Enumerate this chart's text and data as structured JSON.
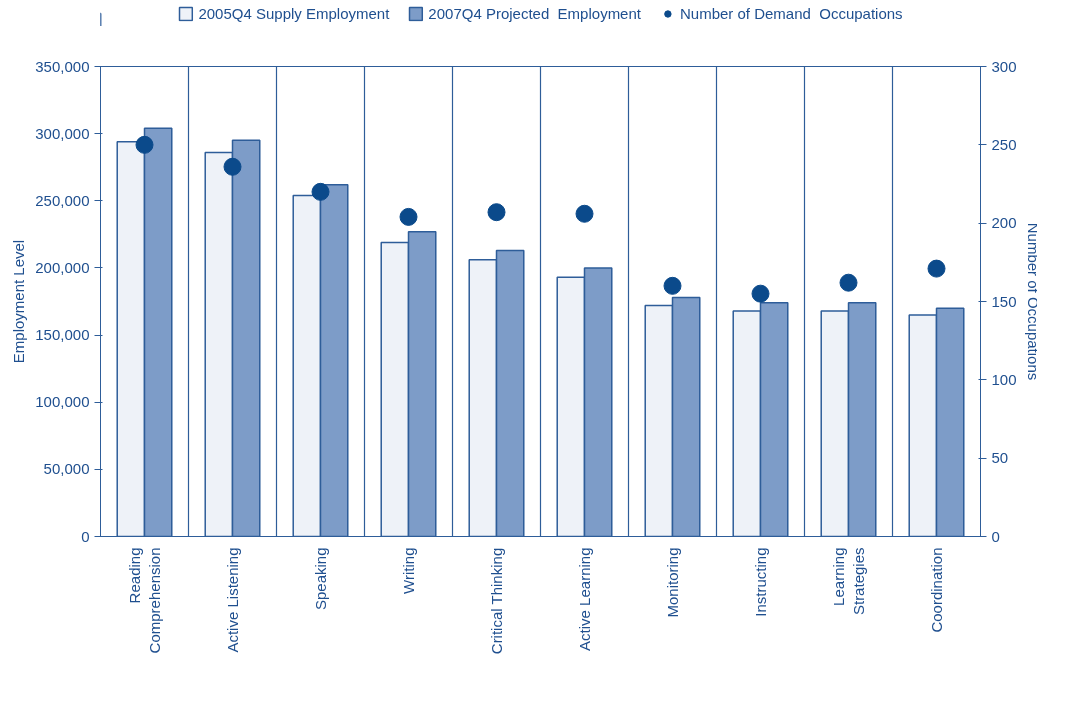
{
  "chart_data": {
    "type": "bar",
    "xlabel": null,
    "ylabel": "Employment Level",
    "y2label": "Number of Occupations",
    "categories": [
      "Reading Comprehension",
      "Active Listening",
      "Speaking",
      "Writing",
      "Critical Thinking",
      "Active Learning",
      "Monitoring",
      "Instructing",
      "Learning Strategies",
      "Coordination"
    ],
    "series": [
      {
        "name": "2005Q4 Supply Employment",
        "color": "#eef2f8",
        "values": [
          294000,
          286000,
          254000,
          219000,
          206000,
          193000,
          172000,
          168000,
          168000,
          165000
        ]
      },
      {
        "name": "2007Q4 Projected  Employment",
        "color": "#7d9cc8",
        "values": [
          304000,
          295000,
          262000,
          227000,
          213000,
          200000,
          178000,
          174000,
          174000,
          170000
        ]
      },
      {
        "name": "Number of Demand  Occupations",
        "type": "scatter",
        "axis": "y2",
        "marker": "circle",
        "color": "#0b4a8b",
        "values": [
          250,
          236,
          220,
          204,
          207,
          206,
          160,
          155,
          162,
          171
        ]
      }
    ],
    "ylim": [
      0,
      350000
    ],
    "yticks": [
      {
        "value": 0,
        "label": "0"
      },
      {
        "value": 50000,
        "label": "50,000"
      },
      {
        "value": 100000,
        "label": "100,000"
      },
      {
        "value": 150000,
        "label": "150,000"
      },
      {
        "value": 200000,
        "label": "200,000"
      },
      {
        "value": 250000,
        "label": "250,000"
      },
      {
        "value": 300000,
        "label": "300,000"
      },
      {
        "value": 350000,
        "label": "350,000"
      }
    ],
    "y2lim": [
      0,
      300
    ],
    "y2ticks": [
      0,
      50,
      100,
      150,
      200,
      250,
      300
    ],
    "grid": "x",
    "legend": "top"
  }
}
